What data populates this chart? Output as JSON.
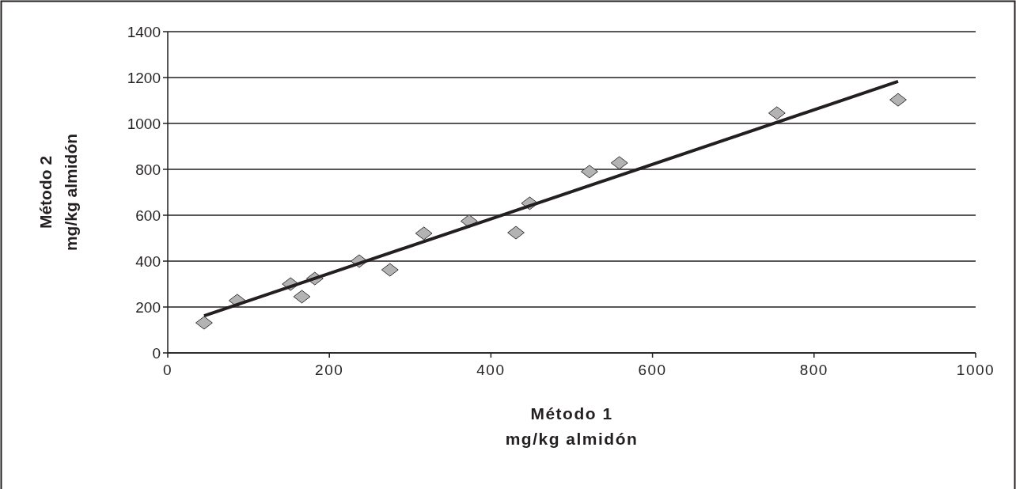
{
  "chart_data": {
    "type": "scatter",
    "xlabel": "Método 1\nmg/kg almidón",
    "ylabel": "Método 2\nmg/kg almidón",
    "xlim": [
      0,
      1000
    ],
    "xticks": [
      0,
      200,
      400,
      600,
      800,
      1000
    ],
    "ylim": [
      0,
      1400
    ],
    "yticks": [
      0,
      200,
      400,
      600,
      800,
      1000,
      1200,
      1400
    ],
    "grid": "y",
    "marker": "diamond",
    "series": [
      {
        "color": "#b3b3b3",
        "x": [
          45,
          86,
          152,
          166,
          182,
          237,
          275,
          317,
          373,
          431,
          448,
          522,
          559,
          754,
          904
        ],
        "values": [
          131,
          228,
          300,
          245,
          324,
          400,
          362,
          521,
          574,
          524,
          652,
          790,
          828,
          1045,
          1103
        ]
      },
      {
        "type": "line",
        "color": "#231f20",
        "marker": "none",
        "line_style": "solid",
        "x": [
          45,
          904
        ],
        "values": [
          162,
          1183
        ]
      }
    ]
  }
}
